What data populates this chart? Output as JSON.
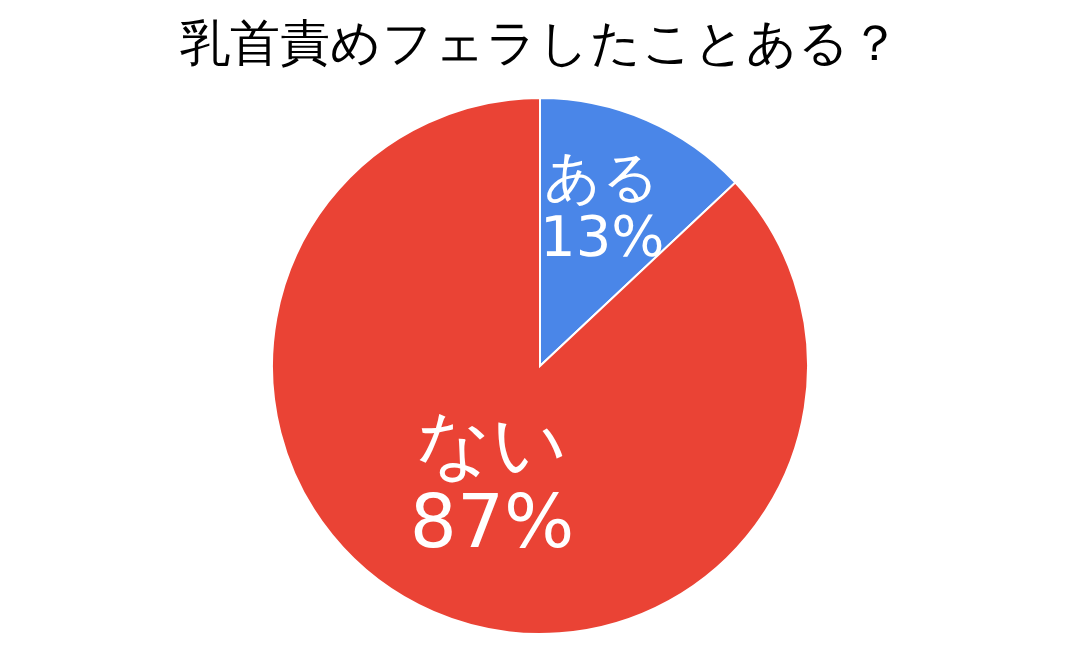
{
  "chart_data": {
    "type": "pie",
    "title": "乳首責めフェラしたことある？",
    "categories": [
      "ある",
      "ない"
    ],
    "values": [
      13,
      87
    ],
    "colors": [
      "#4a86e8",
      "#ea4335"
    ],
    "value_labels": [
      "13%",
      "87%"
    ]
  }
}
